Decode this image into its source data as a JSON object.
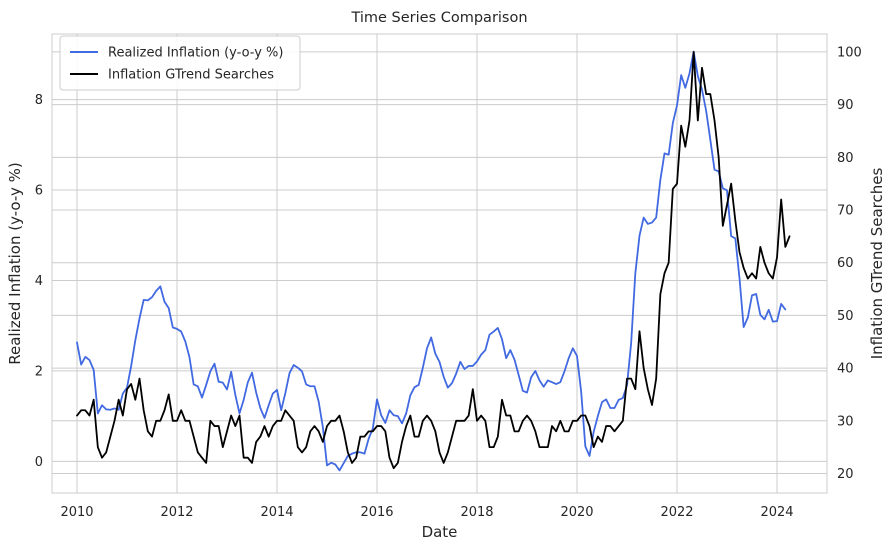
{
  "chart_data": {
    "type": "line",
    "title": "Time Series Comparison",
    "xlabel": "Date",
    "ylabel_left": "Realized Inflation (y-o-y %)",
    "ylabel_right": "Inflation GTrend Searches",
    "xlim": [
      2009.5,
      2025.0
    ],
    "ylim_left": [
      -0.7,
      9.45
    ],
    "ylim_right": [
      16.3,
      103.4
    ],
    "x_ticks": [
      2010,
      2012,
      2014,
      2016,
      2018,
      2020,
      2022,
      2024
    ],
    "y_ticks_left": [
      0,
      2,
      4,
      6,
      8
    ],
    "y_ticks_right": [
      20,
      30,
      40,
      50,
      60,
      70,
      80,
      90,
      100
    ],
    "grid": true,
    "legend_position": "upper-left",
    "x_start": 2010.0,
    "x_step": 0.083333,
    "series": [
      {
        "name": "Realized Inflation (y-o-y %)",
        "color": "#4169e1",
        "axis": "left",
        "values": [
          2.63,
          2.14,
          2.31,
          2.24,
          2.02,
          1.06,
          1.24,
          1.15,
          1.14,
          1.17,
          1.14,
          1.5,
          1.63,
          2.11,
          2.68,
          3.16,
          3.57,
          3.56,
          3.63,
          3.77,
          3.87,
          3.53,
          3.39,
          2.96,
          2.93,
          2.87,
          2.65,
          2.3,
          1.7,
          1.66,
          1.41,
          1.69,
          1.99,
          2.16,
          1.76,
          1.74,
          1.59,
          1.98,
          1.47,
          1.06,
          1.36,
          1.75,
          1.96,
          1.52,
          1.18,
          0.96,
          1.24,
          1.5,
          1.58,
          1.13,
          1.51,
          1.95,
          2.13,
          2.07,
          1.99,
          1.7,
          1.66,
          1.66,
          1.32,
          0.76,
          -0.09,
          -0.03,
          -0.07,
          -0.2,
          -0.04,
          0.12,
          0.17,
          0.2,
          0.2,
          0.17,
          0.5,
          0.73,
          1.37,
          1.02,
          0.85,
          1.13,
          1.02,
          1.0,
          0.84,
          1.06,
          1.46,
          1.64,
          1.69,
          2.07,
          2.5,
          2.74,
          2.38,
          2.2,
          1.87,
          1.63,
          1.73,
          1.94,
          2.2,
          2.04,
          2.11,
          2.11,
          2.21,
          2.36,
          2.46,
          2.8,
          2.87,
          2.95,
          2.7,
          2.28,
          2.46,
          2.25,
          1.91,
          1.56,
          1.52,
          1.86,
          2.0,
          1.79,
          1.65,
          1.79,
          1.75,
          1.71,
          1.75,
          1.99,
          2.28,
          2.5,
          2.33,
          1.54,
          0.33,
          0.12,
          0.65,
          1.0,
          1.31,
          1.37,
          1.18,
          1.18,
          1.36,
          1.4,
          1.68,
          2.62,
          4.16,
          4.99,
          5.39,
          5.25,
          5.28,
          5.39,
          6.22,
          6.81,
          6.78,
          7.48,
          7.87,
          8.54,
          8.26,
          8.58,
          9.06,
          8.52,
          8.22,
          7.75,
          7.11,
          6.45,
          6.41,
          6.04,
          5.99,
          4.98,
          4.93,
          4.05,
          2.97,
          3.18,
          3.67,
          3.7,
          3.24,
          3.14,
          3.35,
          3.09,
          3.1,
          3.48,
          3.36
        ]
      },
      {
        "name": "Inflation GTrend Searches",
        "color": "#000000",
        "axis": "right",
        "values": [
          31,
          32,
          32,
          31,
          34,
          25,
          23,
          24,
          27,
          30,
          34,
          31,
          36,
          37,
          34,
          38,
          32,
          28,
          27,
          30,
          30,
          32,
          35,
          30,
          30,
          32,
          30,
          30,
          27,
          24,
          23,
          22,
          30,
          29,
          29,
          25,
          28,
          31,
          29,
          31,
          23,
          23,
          22,
          26,
          27,
          29,
          27,
          29,
          30,
          30,
          32,
          31,
          30,
          25,
          24,
          25,
          28,
          29,
          28,
          26,
          29,
          30,
          30,
          31,
          28,
          24,
          22,
          23,
          27,
          27,
          28,
          28,
          29,
          29,
          28,
          23,
          21,
          22,
          26,
          29,
          31,
          27,
          27,
          30,
          31,
          30,
          28,
          24,
          22,
          24,
          27,
          30,
          30,
          30,
          31,
          36,
          30,
          31,
          30,
          25,
          25,
          27,
          34,
          31,
          31,
          28,
          28,
          30,
          31,
          30,
          28,
          25,
          25,
          25,
          29,
          28,
          30,
          28,
          28,
          30,
          30,
          31,
          31,
          29,
          25,
          27,
          26,
          29,
          29,
          28,
          29,
          30,
          38,
          38,
          36,
          47,
          40,
          36,
          33,
          38,
          54,
          58,
          60,
          74,
          75,
          86,
          82,
          87,
          100,
          87,
          97,
          92,
          92,
          87,
          80,
          67,
          71,
          75,
          68,
          62,
          59,
          57,
          58,
          57,
          63,
          60,
          58,
          57,
          61,
          72,
          63,
          65
        ]
      }
    ]
  }
}
